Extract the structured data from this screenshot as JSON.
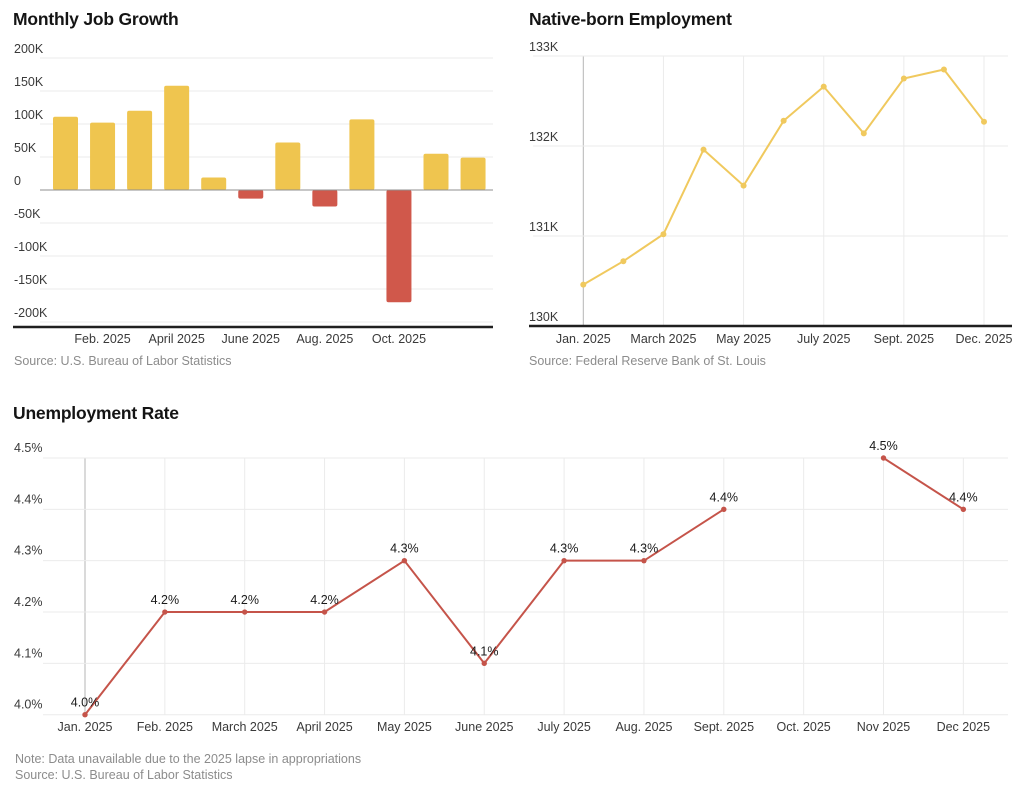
{
  "colors": {
    "background": "#ffffff",
    "bar_positive": "#efc54f",
    "bar_negative": "#d0584b",
    "line_yellow": "#f0c95e",
    "line_red": "#c5544a",
    "grid": "#ebebeb",
    "zero_line": "#8f8f8f",
    "axis_dark": "#1f1f1f",
    "axis_gray": "#b5b5b5",
    "tick_label": "#3a3a3a",
    "data_label": "#1a1a1a",
    "muted_text": "#8c8c8c",
    "title_text": "#141414"
  },
  "chart_data": [
    {
      "id": "monthly-job-growth",
      "type": "bar",
      "title": "Monthly Job Growth",
      "source": "Source: U.S. Bureau of Labor Statistics",
      "unit": "jobs (thousands)",
      "categories": [
        "Jan. 2025",
        "Feb. 2025",
        "March 2025",
        "April 2025",
        "May 2025",
        "June 2025",
        "July 2025",
        "Aug. 2025",
        "Sept. 2025",
        "Oct. 2025",
        "Nov 2025",
        "Dec 2025"
      ],
      "values": [
        111,
        102,
        120,
        158,
        19,
        -13,
        72,
        -25,
        107,
        -170,
        55,
        49
      ],
      "ylim": [
        -200,
        200
      ],
      "ytick_values": [
        200,
        150,
        100,
        50,
        0,
        -50,
        -100,
        -150,
        -200
      ],
      "ytick_labels": [
        "200K",
        "150K",
        "100K",
        "50K",
        "0",
        "-50K",
        "-100K",
        "-150K",
        "-200K"
      ],
      "xticks": [
        {
          "index": 1,
          "label": "Feb. 2025"
        },
        {
          "index": 3,
          "label": "April 2025"
        },
        {
          "index": 5,
          "label": "June 2025"
        },
        {
          "index": 7,
          "label": "Aug. 2025"
        },
        {
          "index": 9,
          "label": "Oct. 2025"
        }
      ],
      "grid": true,
      "legend": "none"
    },
    {
      "id": "native-born-employment",
      "type": "line",
      "title": "Native-born Employment",
      "source": "Source: Federal Reserve Bank of St. Louis",
      "unit": "persons (thousands)",
      "categories": [
        "Jan. 2025",
        "Feb. 2025",
        "March 2025",
        "April 2025",
        "May 2025",
        "June 2025",
        "July 2025",
        "Aug. 2025",
        "Sept. 2025",
        "Nov. 2025",
        "Dec. 2025"
      ],
      "values": [
        130.46,
        130.72,
        131.02,
        131.96,
        131.56,
        132.28,
        132.66,
        132.14,
        132.75,
        132.85,
        132.27
      ],
      "ylim": [
        130,
        133
      ],
      "ytick_values": [
        133,
        132,
        131,
        130
      ],
      "ytick_labels": [
        "133K",
        "132K",
        "131K",
        "130K"
      ],
      "xticks": [
        {
          "index": 0,
          "label": "Jan. 2025"
        },
        {
          "index": 2,
          "label": "March 2025"
        },
        {
          "index": 4,
          "label": "May 2025"
        },
        {
          "index": 6,
          "label": "July 2025"
        },
        {
          "index": 8,
          "label": "Sept. 2025"
        },
        {
          "index": 10,
          "label": "Dec. 2025"
        }
      ],
      "grid": true,
      "legend": "none"
    },
    {
      "id": "unemployment-rate",
      "type": "line",
      "title": "Unemployment Rate",
      "note": "Note: Data unavailable due to the 2025 lapse in appropriations",
      "source": "Source: U.S. Bureau of Labor Statistics",
      "unit": "percent",
      "categories": [
        "Jan. 2025",
        "Feb. 2025",
        "March 2025",
        "April 2025",
        "May 2025",
        "June 2025",
        "July 2025",
        "Aug. 2025",
        "Sept. 2025",
        "Oct. 2025",
        "Nov 2025",
        "Dec 2025"
      ],
      "values": [
        4.0,
        4.2,
        4.2,
        4.2,
        4.3,
        4.1,
        4.3,
        4.3,
        4.4,
        null,
        4.5,
        4.4
      ],
      "point_labels": [
        "4.0%",
        "4.2%",
        "4.2%",
        "4.2%",
        "4.3%",
        "4.1%",
        "4.3%",
        "4.3%",
        "4.4%",
        null,
        "4.5%",
        "4.4%"
      ],
      "missing_months": [
        "Oct. 2025"
      ],
      "ylim": [
        4.0,
        4.5
      ],
      "ytick_values": [
        4.5,
        4.4,
        4.3,
        4.2,
        4.1,
        4.0
      ],
      "ytick_labels": [
        "4.5%",
        "4.4%",
        "4.3%",
        "4.2%",
        "4.1%",
        "4.0%"
      ],
      "grid": true,
      "legend": "none"
    }
  ]
}
